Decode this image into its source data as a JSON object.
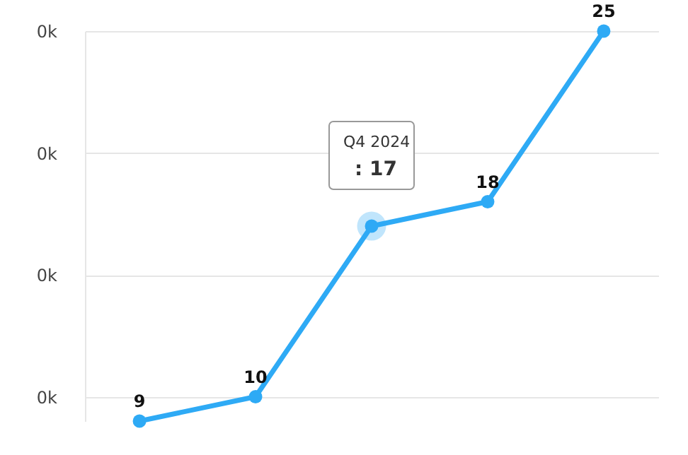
{
  "chart_data": {
    "type": "line",
    "categories": [
      null,
      null,
      null,
      null,
      null
    ],
    "series": [
      {
        "color": "#2eaaf5",
        "values": [
          9,
          10,
          17,
          18,
          25
        ],
        "value_labels": [
          "9",
          "10",
          null,
          "18",
          "25"
        ]
      }
    ],
    "ylim": [
      9,
      25
    ],
    "yticks": [
      {
        "value": 10,
        "label": "0k"
      },
      {
        "value": 15,
        "label": "0k"
      },
      {
        "value": 20,
        "label": "0k"
      },
      {
        "value": 25,
        "label": "0k"
      }
    ],
    "grid": "y",
    "tick_labels": "y",
    "marker": "circle",
    "line_style": "solid",
    "annotations": [
      "Q4 2024",
      ": 17"
    ]
  }
}
